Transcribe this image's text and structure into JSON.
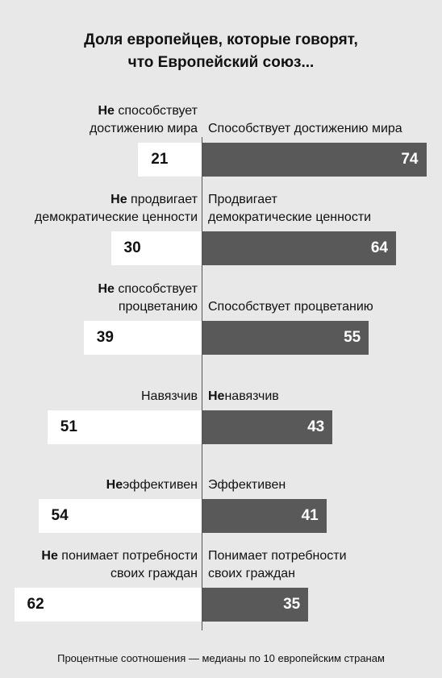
{
  "chart_data": {
    "type": "bar",
    "title": "Доля европейцев, которые говорят,\nчто Европейский союз...",
    "note": "Процентные соотношения — медианы по 10 европейским странам",
    "categories": [
      "peace",
      "democracy",
      "prosperity",
      "intrusive",
      "efficient",
      "understands"
    ],
    "series": [
      {
        "labels": [
          {
            "bold": "Не",
            "text": " способствует\nдостижению мира"
          },
          {
            "bold": "Не",
            "text": " продвигает\nдемократические ценности"
          },
          {
            "bold": "Не",
            "text": " способствует\nпроцветанию"
          },
          {
            "bold": "",
            "text": "Навязчив"
          },
          {
            "bold": "Не",
            "text": "эффективен"
          },
          {
            "bold": "Не",
            "text": " понимает потребности\nсвоих граждан"
          }
        ],
        "values": [
          21,
          30,
          39,
          51,
          54,
          62
        ],
        "color": "#ffffff"
      },
      {
        "labels": [
          {
            "bold": "",
            "text": "Способствует достижению мира"
          },
          {
            "bold": "",
            "text": "Продвигает\nдемократические ценности"
          },
          {
            "bold": "",
            "text": "Способствует процветанию"
          },
          {
            "bold": "Не",
            "text": "навязчив"
          },
          {
            "bold": "",
            "text": "Эффективен"
          },
          {
            "bold": "",
            "text": "Понимает потребности\nсвоих граждан"
          }
        ],
        "values": [
          74,
          64,
          55,
          43,
          41,
          35
        ],
        "color": "#595959"
      }
    ]
  }
}
